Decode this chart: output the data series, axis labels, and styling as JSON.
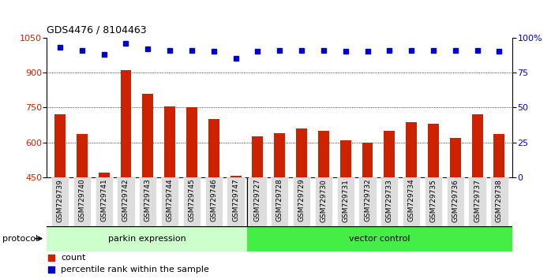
{
  "title": "GDS4476 / 8104463",
  "samples": [
    "GSM729739",
    "GSM729740",
    "GSM729741",
    "GSM729742",
    "GSM729743",
    "GSM729744",
    "GSM729745",
    "GSM729746",
    "GSM729747",
    "GSM729727",
    "GSM729728",
    "GSM729729",
    "GSM729730",
    "GSM729731",
    "GSM729732",
    "GSM729733",
    "GSM729734",
    "GSM729735",
    "GSM729736",
    "GSM729737",
    "GSM729738"
  ],
  "bar_values": [
    720,
    635,
    470,
    910,
    810,
    755,
    750,
    700,
    455,
    625,
    640,
    658,
    648,
    607,
    600,
    650,
    685,
    680,
    620,
    720,
    635
  ],
  "dot_values": [
    93,
    91,
    88,
    96,
    92,
    91,
    91,
    90,
    85,
    90,
    91,
    91,
    91,
    90,
    90,
    91,
    91,
    91,
    91,
    91,
    90
  ],
  "bar_color": "#cc2200",
  "dot_color": "#0000cc",
  "ylim_left": [
    450,
    1050
  ],
  "ylim_right": [
    0,
    100
  ],
  "yticks_left": [
    450,
    600,
    750,
    900,
    1050
  ],
  "yticks_right": [
    0,
    25,
    50,
    75,
    100
  ],
  "grid_values": [
    600,
    750,
    900
  ],
  "parkin_count": 9,
  "vector_count": 12,
  "parkin_label": "parkin expression",
  "vector_label": "vector control",
  "protocol_label": "protocol",
  "legend_items": [
    "count",
    "percentile rank within the sample"
  ],
  "bg_color": "#cccccc",
  "parkin_bg": "#ccffcc",
  "vector_bg": "#44ee44",
  "bar_bottom": 450
}
